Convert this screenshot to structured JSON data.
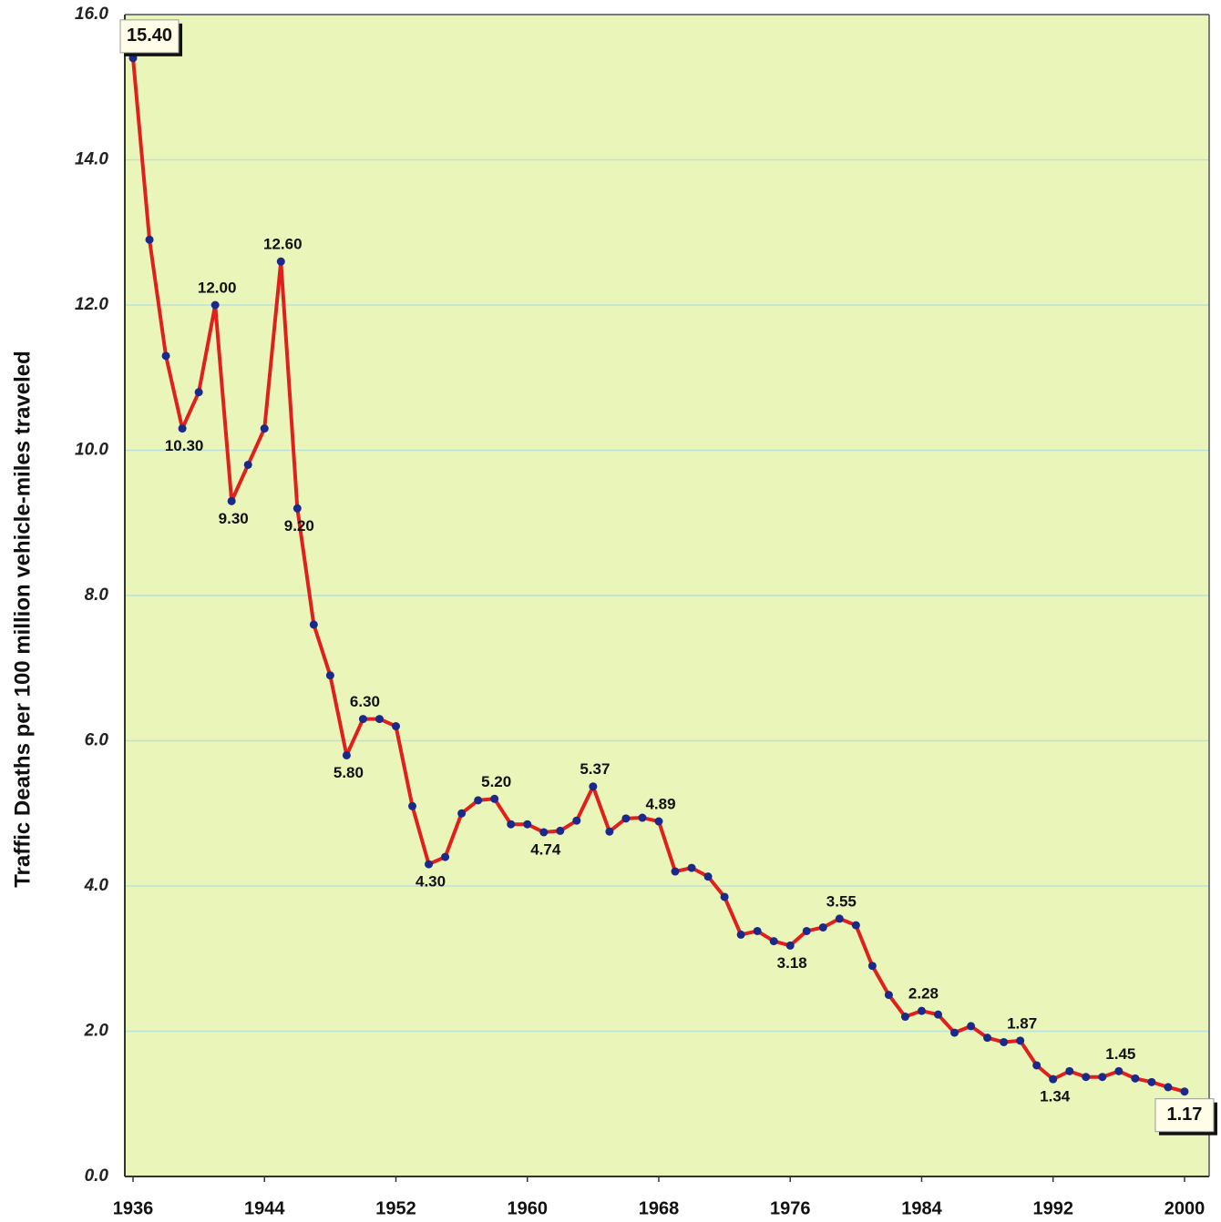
{
  "chart_data": {
    "type": "line",
    "y_label": "Traffic Deaths per 100 million vehicle-miles traveled",
    "x": [
      1936,
      1937,
      1938,
      1939,
      1940,
      1941,
      1942,
      1943,
      1944,
      1945,
      1946,
      1947,
      1948,
      1949,
      1950,
      1951,
      1952,
      1953,
      1954,
      1955,
      1956,
      1957,
      1958,
      1959,
      1960,
      1961,
      1962,
      1963,
      1964,
      1965,
      1966,
      1967,
      1968,
      1969,
      1970,
      1971,
      1972,
      1973,
      1974,
      1975,
      1976,
      1977,
      1978,
      1979,
      1980,
      1981,
      1982,
      1983,
      1984,
      1985,
      1986,
      1987,
      1988,
      1989,
      1990,
      1991,
      1992,
      1993,
      1994,
      1995,
      1996,
      1997,
      1998,
      1999,
      2000
    ],
    "series": [
      {
        "name": "Traffic deaths rate",
        "color": "#e0201c",
        "marker_color": "#1b2a8a",
        "values": [
          15.4,
          12.9,
          11.3,
          10.3,
          10.8,
          12.0,
          9.3,
          9.8,
          10.3,
          12.6,
          9.2,
          7.6,
          6.9,
          5.8,
          6.3,
          6.3,
          6.2,
          5.1,
          4.3,
          4.4,
          5.0,
          5.18,
          5.2,
          4.85,
          4.85,
          4.74,
          4.76,
          4.9,
          5.37,
          4.75,
          4.93,
          4.94,
          4.89,
          4.2,
          4.25,
          4.13,
          3.85,
          3.33,
          3.38,
          3.24,
          3.18,
          3.38,
          3.43,
          3.55,
          3.46,
          2.9,
          2.5,
          2.2,
          2.28,
          2.23,
          1.98,
          2.07,
          1.91,
          1.85,
          1.87,
          1.53,
          1.34,
          1.45,
          1.37,
          1.37,
          1.45,
          1.35,
          1.3,
          1.23,
          1.17
        ],
        "value_labels": [
          "15.40",
          null,
          null,
          "10.30",
          null,
          "12.00",
          "9.30",
          null,
          null,
          "12.60",
          "9.20",
          null,
          null,
          "5.80",
          "6.30",
          null,
          null,
          null,
          "4.30",
          null,
          null,
          null,
          "5.20",
          null,
          null,
          "4.74",
          null,
          null,
          "5.37",
          null,
          null,
          null,
          "4.89",
          null,
          null,
          null,
          null,
          null,
          null,
          null,
          "3.18",
          null,
          null,
          "3.55",
          null,
          null,
          null,
          null,
          "2.28",
          null,
          null,
          null,
          null,
          null,
          "1.87",
          null,
          "1.34",
          null,
          null,
          null,
          "1.45",
          null,
          null,
          null,
          "1.17"
        ]
      }
    ],
    "xlim": [
      1935.5,
      2001.5
    ],
    "xticks": [
      1936,
      1944,
      1952,
      1960,
      1968,
      1976,
      1984,
      1992,
      2000
    ],
    "ylim": [
      0,
      16
    ],
    "yticks": [
      {
        "value": 0,
        "label": "0.0"
      },
      {
        "value": 2,
        "label": "2.0"
      },
      {
        "value": 4,
        "label": "4.0"
      },
      {
        "value": 6,
        "label": "6.0"
      },
      {
        "value": 8,
        "label": "8.0"
      },
      {
        "value": 10,
        "label": "10.0"
      },
      {
        "value": 12,
        "label": "12.0"
      },
      {
        "value": 14,
        "label": "14.0"
      },
      {
        "value": 16,
        "label": "16.0"
      }
    ],
    "grid": true,
    "background": "#eaf5b9"
  }
}
